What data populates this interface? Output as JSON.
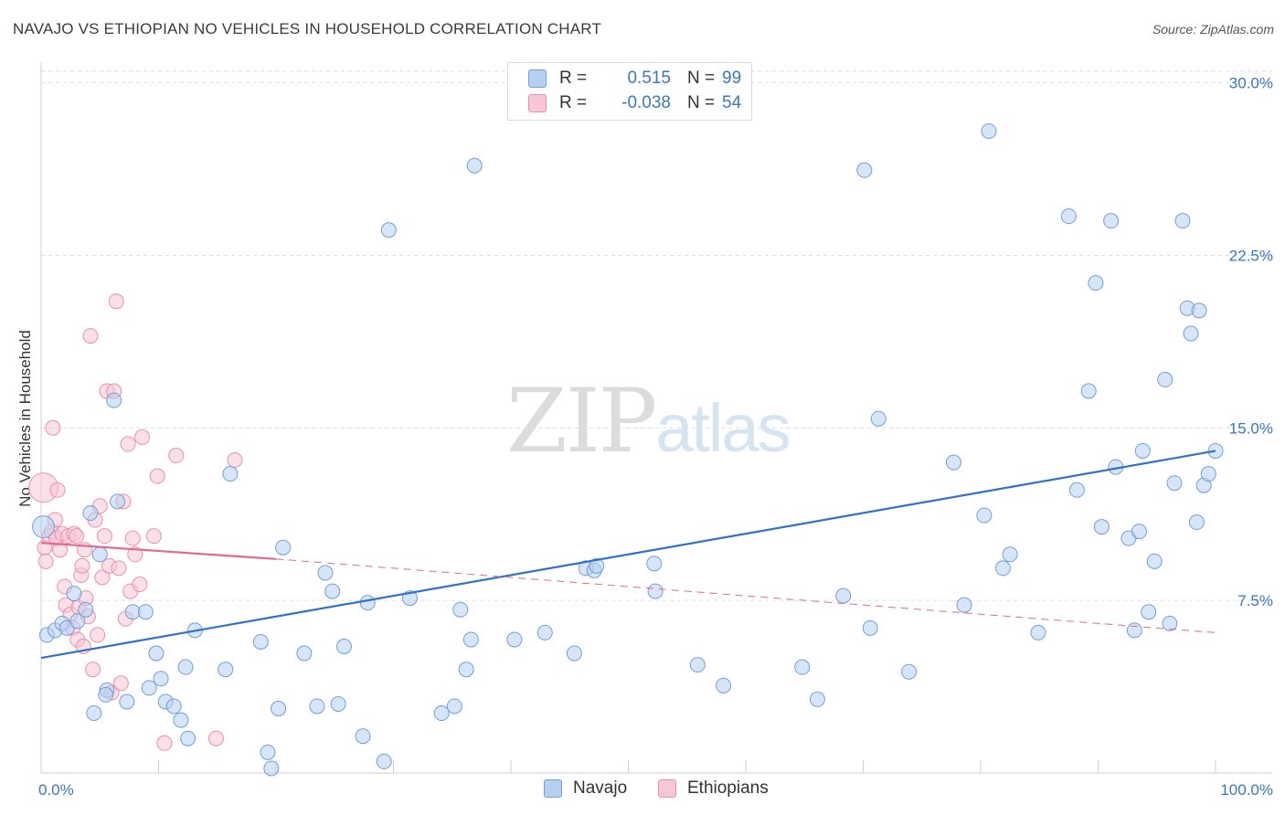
{
  "title": "NAVAJO VS ETHIOPIAN NO VEHICLES IN HOUSEHOLD CORRELATION CHART",
  "source": "Source: ZipAtlas.com",
  "watermark": {
    "zip": "ZIP",
    "atlas": "atlas"
  },
  "legend": {
    "rows": [
      {
        "name": "navajo",
        "r_label": "R =",
        "r_value": "0.515",
        "n_label": "N =",
        "n_value": "99",
        "color": "#a9c8f0"
      },
      {
        "name": "ethiopians",
        "r_label": "R =",
        "r_value": "-0.038",
        "n_label": "N =",
        "n_value": "54",
        "color": "#f7b8cb"
      }
    ]
  },
  "bottom_legend": [
    {
      "label": "Navajo",
      "color": "#a9c8f0"
    },
    {
      "label": "Ethiopians",
      "color": "#f7b8cb"
    }
  ],
  "colors": {
    "navajo": "#6f9fdc",
    "navajo_fill": "#b6d0f2",
    "ethiopians": "#ee8eac",
    "ethiopians_fill": "#f8c6d5",
    "navajo_line": "#2f72c8",
    "ethiopians_line": "#e0698f",
    "axis_text": "#3a76c4",
    "grid": "#dedede"
  },
  "chart_data": {
    "type": "scatter",
    "title": "NAVAJO VS ETHIOPIAN NO VEHICLES IN HOUSEHOLD CORRELATION CHART",
    "xlabel": "",
    "ylabel": "No Vehicles in Household",
    "xlim": [
      0,
      100
    ],
    "ylim": [
      0,
      30.5
    ],
    "x_tick_labels": [
      {
        "value": 0,
        "label": "0.0%"
      },
      {
        "value": 100,
        "label": "100.0%"
      }
    ],
    "y_ticks": [
      {
        "value": 7.5,
        "label": "7.5%"
      },
      {
        "value": 15.0,
        "label": "15.0%"
      },
      {
        "value": 22.5,
        "label": "22.5%"
      },
      {
        "value": 30.0,
        "label": "30.0%"
      }
    ],
    "series": [
      {
        "name": "Navajo",
        "r": 0.515,
        "n": 99,
        "trend": {
          "x": [
            0,
            100
          ],
          "y": [
            5.0,
            14.0
          ],
          "style": "solid"
        },
        "points": [
          [
            0.2,
            10.7
          ],
          [
            0.5,
            6.0
          ],
          [
            1.2,
            6.2
          ],
          [
            1.8,
            6.5
          ],
          [
            2.2,
            6.3
          ],
          [
            2.8,
            7.8
          ],
          [
            3.1,
            6.6
          ],
          [
            3.8,
            7.1
          ],
          [
            4.2,
            11.3
          ],
          [
            4.5,
            2.6
          ],
          [
            5.0,
            9.5
          ],
          [
            5.6,
            3.6
          ],
          [
            5.5,
            3.4
          ],
          [
            6.2,
            16.2
          ],
          [
            6.5,
            11.8
          ],
          [
            7.3,
            3.1
          ],
          [
            7.8,
            7.0
          ],
          [
            8.9,
            7.0
          ],
          [
            9.2,
            3.7
          ],
          [
            9.8,
            5.2
          ],
          [
            10.2,
            4.1
          ],
          [
            10.6,
            3.1
          ],
          [
            11.3,
            2.9
          ],
          [
            11.9,
            2.3
          ],
          [
            12.3,
            4.6
          ],
          [
            12.5,
            1.5
          ],
          [
            13.1,
            6.2
          ],
          [
            15.7,
            4.5
          ],
          [
            16.1,
            13.0
          ],
          [
            18.7,
            5.7
          ],
          [
            19.3,
            0.9
          ],
          [
            19.6,
            0.2
          ],
          [
            20.2,
            2.8
          ],
          [
            20.6,
            9.8
          ],
          [
            22.4,
            5.2
          ],
          [
            23.5,
            2.9
          ],
          [
            24.2,
            8.7
          ],
          [
            24.8,
            7.9
          ],
          [
            25.3,
            3.0
          ],
          [
            25.8,
            5.5
          ],
          [
            27.4,
            1.6
          ],
          [
            27.8,
            7.4
          ],
          [
            29.2,
            0.5
          ],
          [
            29.6,
            23.6
          ],
          [
            31.4,
            7.6
          ],
          [
            34.1,
            2.6
          ],
          [
            35.2,
            2.9
          ],
          [
            35.7,
            7.1
          ],
          [
            36.2,
            4.5
          ],
          [
            36.6,
            5.8
          ],
          [
            36.9,
            26.4
          ],
          [
            40.3,
            5.8
          ],
          [
            42.9,
            6.1
          ],
          [
            45.4,
            5.2
          ],
          [
            46.4,
            8.9
          ],
          [
            47.1,
            8.8
          ],
          [
            47.3,
            9.0
          ],
          [
            52.2,
            9.1
          ],
          [
            52.3,
            7.9
          ],
          [
            55.9,
            4.7
          ],
          [
            58.1,
            3.8
          ],
          [
            64.8,
            4.6
          ],
          [
            66.1,
            3.2
          ],
          [
            68.3,
            7.7
          ],
          [
            70.1,
            26.2
          ],
          [
            70.6,
            6.3
          ],
          [
            71.3,
            15.4
          ],
          [
            73.9,
            4.4
          ],
          [
            77.7,
            13.5
          ],
          [
            78.6,
            7.3
          ],
          [
            80.3,
            11.2
          ],
          [
            80.7,
            27.9
          ],
          [
            81.9,
            8.9
          ],
          [
            82.5,
            9.5
          ],
          [
            84.9,
            6.1
          ],
          [
            87.5,
            24.2
          ],
          [
            88.2,
            12.3
          ],
          [
            89.2,
            16.6
          ],
          [
            89.8,
            21.3
          ],
          [
            90.3,
            10.7
          ],
          [
            91.1,
            24.0
          ],
          [
            91.5,
            13.3
          ],
          [
            92.6,
            10.2
          ],
          [
            93.1,
            6.2
          ],
          [
            93.5,
            10.5
          ],
          [
            93.8,
            14.0
          ],
          [
            94.3,
            7.0
          ],
          [
            94.8,
            9.2
          ],
          [
            95.7,
            17.1
          ],
          [
            96.1,
            6.5
          ],
          [
            96.5,
            12.6
          ],
          [
            97.2,
            24.0
          ],
          [
            97.6,
            20.2
          ],
          [
            97.9,
            19.1
          ],
          [
            98.4,
            10.9
          ],
          [
            98.6,
            20.1
          ],
          [
            99.0,
            12.5
          ],
          [
            99.4,
            13.0
          ],
          [
            100.0,
            14.0
          ]
        ]
      },
      {
        "name": "Ethiopians",
        "r": -0.038,
        "n": 54,
        "trend": {
          "x": [
            0,
            20,
            100
          ],
          "y": [
            10.0,
            9.3,
            6.1
          ],
          "style": "solid-then-dashed"
        },
        "points": [
          [
            0.2,
            12.4
          ],
          [
            0.3,
            9.8
          ],
          [
            0.4,
            9.2
          ],
          [
            0.7,
            10.3
          ],
          [
            0.9,
            10.5
          ],
          [
            1.0,
            15.0
          ],
          [
            1.2,
            11.0
          ],
          [
            1.3,
            10.2
          ],
          [
            1.4,
            12.3
          ],
          [
            1.6,
            9.7
          ],
          [
            1.8,
            10.4
          ],
          [
            2.0,
            8.1
          ],
          [
            2.1,
            7.3
          ],
          [
            2.3,
            10.3
          ],
          [
            2.5,
            6.9
          ],
          [
            2.7,
            6.3
          ],
          [
            2.8,
            10.4
          ],
          [
            3.0,
            10.3
          ],
          [
            3.1,
            5.8
          ],
          [
            3.2,
            7.2
          ],
          [
            3.4,
            8.6
          ],
          [
            3.5,
            9.0
          ],
          [
            3.6,
            5.5
          ],
          [
            3.7,
            9.7
          ],
          [
            3.8,
            7.6
          ],
          [
            4.0,
            6.8
          ],
          [
            4.2,
            19.0
          ],
          [
            4.4,
            4.5
          ],
          [
            4.6,
            11.0
          ],
          [
            4.8,
            6.0
          ],
          [
            5.0,
            11.6
          ],
          [
            5.2,
            8.5
          ],
          [
            5.4,
            10.3
          ],
          [
            5.6,
            16.6
          ],
          [
            5.8,
            9.0
          ],
          [
            6.0,
            3.5
          ],
          [
            6.2,
            16.6
          ],
          [
            6.4,
            20.5
          ],
          [
            6.6,
            8.9
          ],
          [
            6.8,
            3.9
          ],
          [
            7.0,
            11.8
          ],
          [
            7.2,
            6.7
          ],
          [
            7.4,
            14.3
          ],
          [
            7.6,
            7.9
          ],
          [
            7.8,
            10.2
          ],
          [
            8.0,
            9.5
          ],
          [
            8.4,
            8.2
          ],
          [
            8.6,
            14.6
          ],
          [
            9.6,
            10.3
          ],
          [
            9.9,
            12.9
          ],
          [
            10.5,
            1.3
          ],
          [
            11.5,
            13.8
          ],
          [
            14.9,
            1.5
          ],
          [
            16.5,
            13.6
          ]
        ]
      }
    ]
  }
}
